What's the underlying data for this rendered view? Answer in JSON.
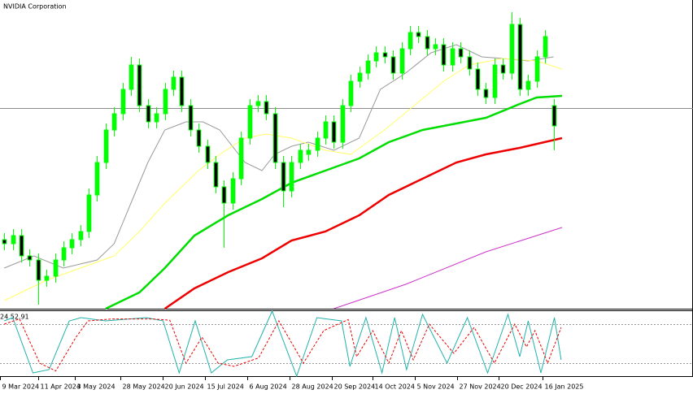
{
  "chart_data": [
    {
      "type": "candlestick",
      "title": "NVIDIA Corporation",
      "color": "#00ff00",
      "xlim": [
        -0.5,
        81.5
      ],
      "ylim": [
        0,
        380
      ],
      "hline": 247,
      "hline_color": "#8c8c8c",
      "open": [
        85,
        80,
        90,
        65,
        60,
        35,
        40,
        60,
        75,
        85,
        95,
        140,
        180,
        220,
        240,
        270,
        300,
        250,
        230,
        240,
        270,
        285,
        250,
        220,
        200,
        180,
        150,
        130,
        160,
        210,
        250,
        255,
        240,
        180,
        145,
        180,
        190,
        195,
        210,
        230,
        205,
        250,
        280,
        290,
        305,
        315,
        310,
        290,
        320,
        340,
        335,
        320,
        325,
        300,
        320,
        310,
        295,
        270,
        260,
        300,
        290,
        350,
        270,
        280,
        310,
        250
      ],
      "high": [
        93,
        98,
        98,
        73,
        68,
        48,
        68,
        83,
        93,
        103,
        148,
        188,
        228,
        248,
        278,
        310,
        308,
        258,
        248,
        278,
        293,
        293,
        258,
        228,
        208,
        188,
        158,
        168,
        218,
        258,
        263,
        263,
        248,
        188,
        188,
        203,
        203,
        218,
        238,
        238,
        258,
        288,
        298,
        313,
        323,
        323,
        318,
        328,
        348,
        348,
        343,
        333,
        333,
        328,
        328,
        318,
        303,
        278,
        308,
        308,
        365,
        358,
        288,
        318,
        343,
        258
      ],
      "low": [
        72,
        72,
        57,
        52,
        5,
        27,
        32,
        52,
        67,
        77,
        87,
        132,
        172,
        212,
        232,
        262,
        242,
        222,
        222,
        232,
        262,
        242,
        212,
        192,
        172,
        142,
        75,
        122,
        152,
        202,
        242,
        232,
        172,
        125,
        137,
        172,
        182,
        187,
        202,
        197,
        197,
        242,
        272,
        282,
        297,
        302,
        282,
        282,
        312,
        327,
        312,
        312,
        292,
        292,
        302,
        287,
        262,
        252,
        252,
        282,
        282,
        262,
        262,
        272,
        302,
        195
      ],
      "close": [
        80,
        90,
        65,
        60,
        35,
        40,
        60,
        75,
        85,
        95,
        140,
        180,
        220,
        240,
        270,
        300,
        250,
        230,
        240,
        270,
        285,
        250,
        220,
        200,
        180,
        150,
        130,
        160,
        210,
        250,
        255,
        240,
        180,
        145,
        180,
        195,
        195,
        210,
        230,
        205,
        250,
        280,
        290,
        305,
        315,
        310,
        290,
        320,
        340,
        335,
        320,
        325,
        300,
        320,
        310,
        295,
        270,
        260,
        300,
        290,
        350,
        270,
        280,
        310,
        335,
        225
      ],
      "overlays": [
        {
          "color": "#9a9a9a",
          "x": [
            0,
            3.5,
            7,
            11,
            13,
            15,
            17,
            19,
            21.5,
            23.5,
            25.5,
            28.5,
            30.5,
            32,
            34,
            36,
            39,
            42,
            44.5,
            47.5,
            50.5,
            53.5,
            56.5,
            59,
            62,
            65
          ],
          "values": [
            50,
            65,
            50,
            60,
            80,
            130,
            180,
            220,
            230,
            230,
            220,
            180,
            170,
            190,
            200,
            205,
            195,
            210,
            270,
            290,
            315,
            325,
            310,
            308,
            305,
            310
          ]
        },
        {
          "color": "#ffff66",
          "x": [
            0,
            5,
            9,
            13,
            16,
            19,
            23,
            25.5,
            28.5,
            31,
            34,
            38,
            41,
            45,
            48.5,
            52,
            55,
            59,
            63,
            66
          ],
          "values": [
            10,
            35,
            50,
            65,
            95,
            130,
            170,
            190,
            210,
            215,
            210,
            195,
            190,
            220,
            250,
            280,
            300,
            308,
            305,
            295
          ]
        },
        {
          "color": "#00dd00",
          "x": [
            12,
            16,
            19,
            22.5,
            26.5,
            30.5,
            34,
            38,
            42,
            45.5,
            49.5,
            53.5,
            57,
            61,
            63,
            66
          ],
          "values": [
            0,
            20,
            50,
            90,
            115,
            135,
            155,
            170,
            185,
            205,
            220,
            228,
            235,
            252,
            260,
            262
          ]
        },
        {
          "color": "#ee0000",
          "x": [
            19,
            22.5,
            26.5,
            30.5,
            34,
            38,
            42,
            45.5,
            49.5,
            53.5,
            57,
            61,
            66
          ],
          "values": [
            0,
            25,
            45,
            62,
            84,
            95,
            115,
            140,
            160,
            180,
            190,
            198,
            210
          ]
        },
        {
          "color": "#cc33cc",
          "x": [
            39,
            47.5,
            57,
            66
          ],
          "values": [
            0,
            30,
            70,
            100
          ]
        }
      ]
    },
    {
      "type": "stochastic",
      "title": "24 52.91",
      "xlim": [
        -0.5,
        81.5
      ],
      "ylim": [
        0,
        100
      ],
      "levels": [
        80,
        20
      ],
      "xticks": [
        {
          "value": -0.5,
          "label": "9 Mar 2024"
        },
        {
          "value": 4,
          "label": "11 Apr 2024"
        },
        {
          "value": 8.4,
          "label": "3 May 2024"
        },
        {
          "value": 13.75,
          "label": "28 May 2024"
        },
        {
          "value": 18.75,
          "label": "20 Jun 2024"
        },
        {
          "value": 23.75,
          "label": "15 Jul 2024"
        },
        {
          "value": 28.75,
          "label": "6 Aug 2024"
        },
        {
          "value": 33.75,
          "label": "28 Aug 2024"
        },
        {
          "value": 38.75,
          "label": "20 Sep 2024"
        },
        {
          "value": 43.6,
          "label": "14 Oct 2024"
        },
        {
          "value": 48.6,
          "label": "5 Nov 2024"
        },
        {
          "value": 53.6,
          "label": "27 Nov 2024"
        },
        {
          "value": 58.5,
          "label": "20 Dec 2024"
        },
        {
          "value": 63.7,
          "label": "16 Jan 2025"
        }
      ],
      "series": [
        {
          "color": "#20b2aa",
          "dashed": false,
          "x": [
            0,
            1,
            3.4,
            5.3,
            7.7,
            9.1,
            12,
            16.8,
            18.8,
            20.7,
            22.6,
            24.5,
            26.4,
            29.3,
            31.7,
            34.6,
            37,
            39.9,
            40.9,
            42.8,
            44.7,
            46.2,
            47.6,
            49.5,
            52.4,
            54.8,
            57.2,
            59.6,
            61,
            62,
            63.5,
            65.1,
            65.9
          ],
          "values": [
            85,
            90,
            5,
            10,
            85,
            90,
            85,
            90,
            85,
            5,
            85,
            5,
            25,
            30,
            100,
            0,
            90,
            85,
            15,
            90,
            5,
            90,
            10,
            95,
            20,
            90,
            5,
            95,
            30,
            85,
            5,
            90,
            25
          ]
        },
        {
          "color": "#ee0000",
          "dashed": true,
          "x": [
            0,
            1.8,
            4.2,
            6.1,
            8.5,
            9.9,
            12.8,
            17.6,
            19.6,
            21.5,
            23.4,
            25.3,
            27.2,
            30.1,
            32.5,
            35.4,
            37.8,
            40.7,
            41.7,
            43.6,
            45.5,
            47,
            48.4,
            50.3,
            53.2,
            55.6,
            58,
            60.4,
            61.8,
            62.8,
            64.3,
            65.9
          ],
          "values": [
            80,
            88,
            20,
            8,
            60,
            85,
            88,
            88,
            86,
            20,
            60,
            20,
            15,
            28,
            85,
            20,
            70,
            87,
            30,
            70,
            20,
            70,
            25,
            80,
            35,
            75,
            20,
            80,
            45,
            70,
            20,
            75
          ]
        }
      ]
    }
  ]
}
